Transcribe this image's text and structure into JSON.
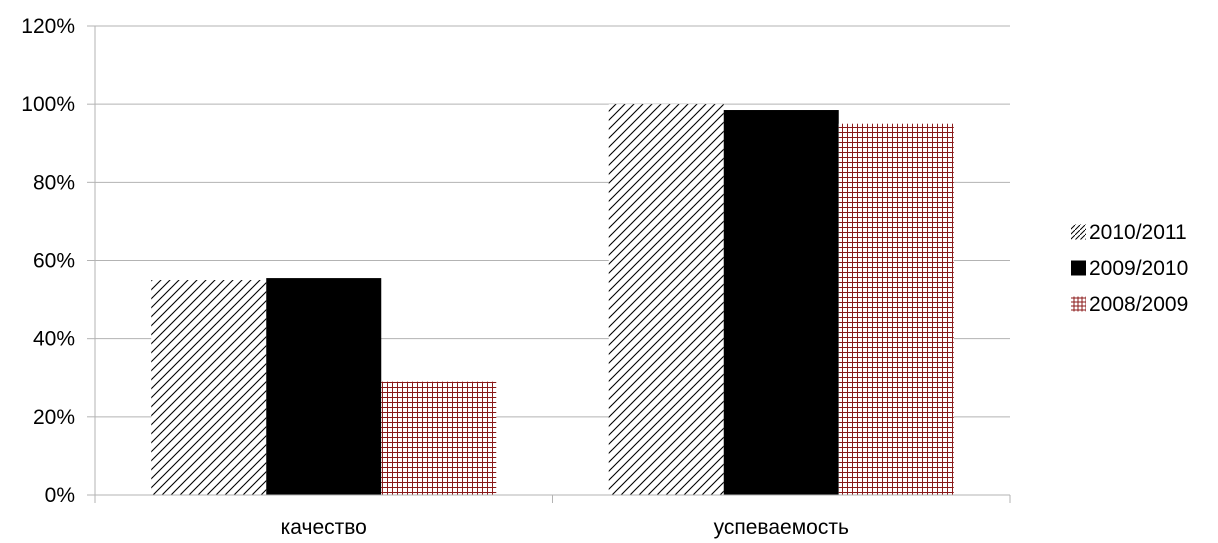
{
  "chart_data": {
    "type": "bar",
    "categories": [
      "качество",
      "успеваемость"
    ],
    "series": [
      {
        "name": "2010/2011",
        "values": [
          55,
          100
        ],
        "color": "#000000",
        "pattern": "diagonal-hatch"
      },
      {
        "name": "2009/2010",
        "values": [
          55.5,
          98.5
        ],
        "color": "#000000",
        "pattern": "solid"
      },
      {
        "name": "2008/2009",
        "values": [
          29,
          95
        ],
        "color": "#8b1a1a",
        "pattern": "crosshatch"
      }
    ],
    "y_ticks": [
      "0%",
      "20%",
      "40%",
      "60%",
      "80%",
      "100%",
      "120%"
    ],
    "ylim": [
      0,
      120
    ],
    "y_unit": "%",
    "grid": true,
    "legend_position": "right",
    "colors": {
      "gridline": "#b3b3b3",
      "axis": "#b3b3b3"
    }
  }
}
